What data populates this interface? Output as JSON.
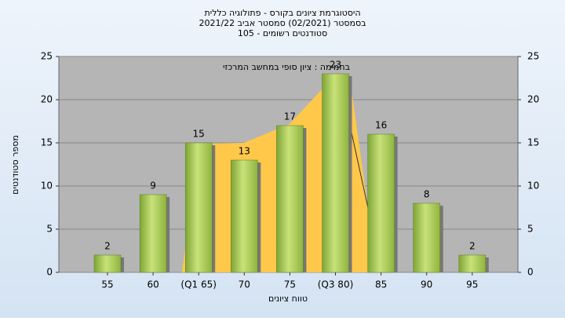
{
  "chart_data": {
    "type": "bar",
    "title": "היסטוגרמת ציונים בקורס - פתולוגיה כללית",
    "subtitle": "בסמסטר  (02/2021)  סמסטר אביב 2021/22",
    "subtitle2": "סטודנטים רשומים - 105",
    "annotation": "בחמימה : ציון סופי במחשב המרכזי",
    "x_label": "טווח ציונים",
    "y_label": "מספר סטודנטים",
    "categories": [
      "55",
      "60",
      "(Q1 65)",
      "70",
      "75",
      "(Q3 80)",
      "85",
      "90",
      "95"
    ],
    "values": [
      2,
      9,
      15,
      13,
      17,
      23,
      16,
      8,
      2
    ],
    "color": "#9cc04a",
    "ylim": [
      0,
      25
    ],
    "yticks": [
      0,
      5,
      10,
      15,
      20,
      25
    ],
    "grid": true
  }
}
